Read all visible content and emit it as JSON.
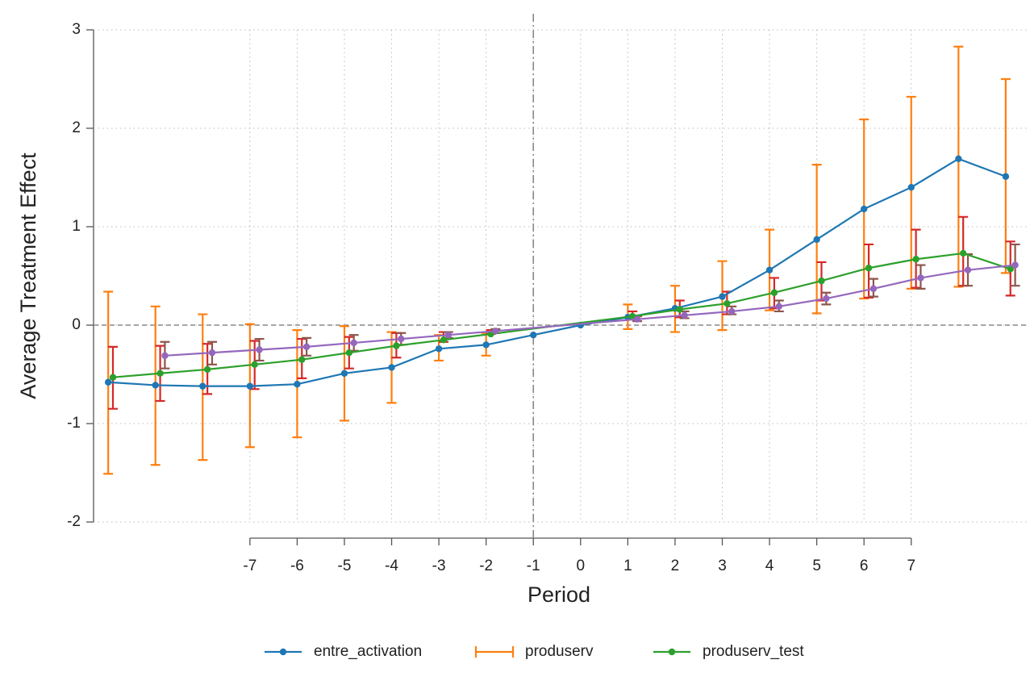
{
  "chart_data": {
    "type": "line",
    "xlabel": "Period",
    "ylabel": "Average Treatment Effect",
    "xlim": [
      -10.31,
      9.48
    ],
    "ylim": [
      -2,
      3
    ],
    "xticks": [
      -7,
      -6,
      -5,
      -4,
      -3,
      -2,
      -1,
      0,
      1,
      2,
      3,
      4,
      5,
      6,
      7
    ],
    "yticks": [
      -2,
      -1,
      0,
      1,
      2,
      3
    ],
    "grid": true,
    "vline": -1,
    "hline": 0,
    "legend": "bottom",
    "series": [
      {
        "name": "entre_activation",
        "type": "line",
        "color": "#1f77b4",
        "x": [
          -10,
          -9,
          -8,
          -7,
          -6,
          -5,
          -4,
          -3,
          -2,
          -1,
          0,
          1,
          2,
          3,
          4,
          5,
          6,
          7,
          8,
          9
        ],
        "values": [
          -0.58,
          -0.61,
          -0.62,
          -0.62,
          -0.6,
          -0.49,
          -0.43,
          -0.24,
          -0.2,
          -0.1,
          0.0,
          0.08,
          0.17,
          0.29,
          0.56,
          0.87,
          1.18,
          1.4,
          1.69,
          1.51
        ]
      },
      {
        "name": "produserv",
        "type": "errorbar",
        "color": "#ff7f0e",
        "x": [
          -10,
          -9,
          -8,
          -7,
          -6,
          -5,
          -4,
          -3,
          -2,
          1,
          2,
          3,
          4,
          5,
          6,
          7,
          8,
          9
        ],
        "lower": [
          -1.51,
          -1.42,
          -1.37,
          -1.24,
          -1.14,
          -0.97,
          -0.79,
          -0.36,
          -0.31,
          -0.04,
          -0.07,
          -0.05,
          0.15,
          0.12,
          0.27,
          0.37,
          0.39,
          0.53
        ],
        "upper": [
          0.34,
          0.19,
          0.11,
          0.01,
          -0.05,
          -0.01,
          -0.07,
          -0.1,
          -0.08,
          0.21,
          0.4,
          0.65,
          0.97,
          1.63,
          2.09,
          2.32,
          2.83,
          2.5
        ]
      },
      {
        "name": "produserv_test",
        "type": "line",
        "color": "#2ca02c",
        "x": [
          -9.9,
          -8.9,
          -7.9,
          -6.9,
          -5.9,
          -4.9,
          -3.9,
          -2.9,
          -1.9,
          1.1,
          2.1,
          3.1,
          4.1,
          5.1,
          6.1,
          7.1,
          8.1,
          9.1
        ],
        "values": [
          -0.53,
          -0.49,
          -0.45,
          -0.4,
          -0.35,
          -0.28,
          -0.21,
          -0.15,
          -0.09,
          0.09,
          0.16,
          0.22,
          0.33,
          0.45,
          0.58,
          0.67,
          0.73,
          0.57
        ]
      },
      {
        "type": "errorbar",
        "color": "#d62728",
        "x": [
          -9.9,
          -8.9,
          -7.9,
          -6.9,
          -5.9,
          -4.9,
          -3.9,
          -2.9,
          -1.9,
          1.1,
          2.1,
          3.1,
          4.1,
          5.1,
          6.1,
          7.1,
          8.1,
          9.1
        ],
        "lower": [
          -0.85,
          -0.77,
          -0.7,
          -0.65,
          -0.54,
          -0.44,
          -0.33,
          -0.17,
          -0.09,
          0.06,
          0.08,
          0.11,
          0.17,
          0.25,
          0.28,
          0.38,
          0.4,
          0.3
        ],
        "upper": [
          -0.22,
          -0.21,
          -0.19,
          -0.16,
          -0.14,
          -0.12,
          -0.08,
          -0.07,
          -0.05,
          0.14,
          0.25,
          0.34,
          0.48,
          0.64,
          0.82,
          0.97,
          1.1,
          0.85
        ]
      },
      {
        "type": "line",
        "color": "#9467bd",
        "x": [
          -8.8,
          -7.8,
          -6.8,
          -5.8,
          -4.8,
          -3.8,
          -2.8,
          -1.8,
          1.2,
          2.2,
          3.2,
          4.2,
          5.2,
          6.2,
          7.2,
          8.2,
          9.2
        ],
        "values": [
          -0.31,
          -0.28,
          -0.25,
          -0.22,
          -0.18,
          -0.14,
          -0.1,
          -0.06,
          0.06,
          0.1,
          0.14,
          0.19,
          0.27,
          0.37,
          0.48,
          0.56,
          0.61
        ]
      },
      {
        "type": "errorbar",
        "color": "#8c564b",
        "x": [
          -8.8,
          -7.8,
          -6.8,
          -5.8,
          -4.8,
          -3.8,
          -2.8,
          -1.8,
          1.2,
          2.2,
          3.2,
          4.2,
          5.2,
          6.2,
          7.2,
          8.2,
          9.2
        ],
        "lower": [
          -0.44,
          -0.4,
          -0.36,
          -0.31,
          -0.26,
          -0.2,
          -0.13,
          -0.08,
          0.04,
          0.07,
          0.11,
          0.14,
          0.21,
          0.29,
          0.37,
          0.4,
          0.4
        ],
        "upper": [
          -0.17,
          -0.17,
          -0.14,
          -0.13,
          -0.1,
          -0.08,
          -0.07,
          -0.04,
          0.09,
          0.14,
          0.19,
          0.25,
          0.33,
          0.47,
          0.61,
          0.72,
          0.82
        ]
      }
    ]
  }
}
